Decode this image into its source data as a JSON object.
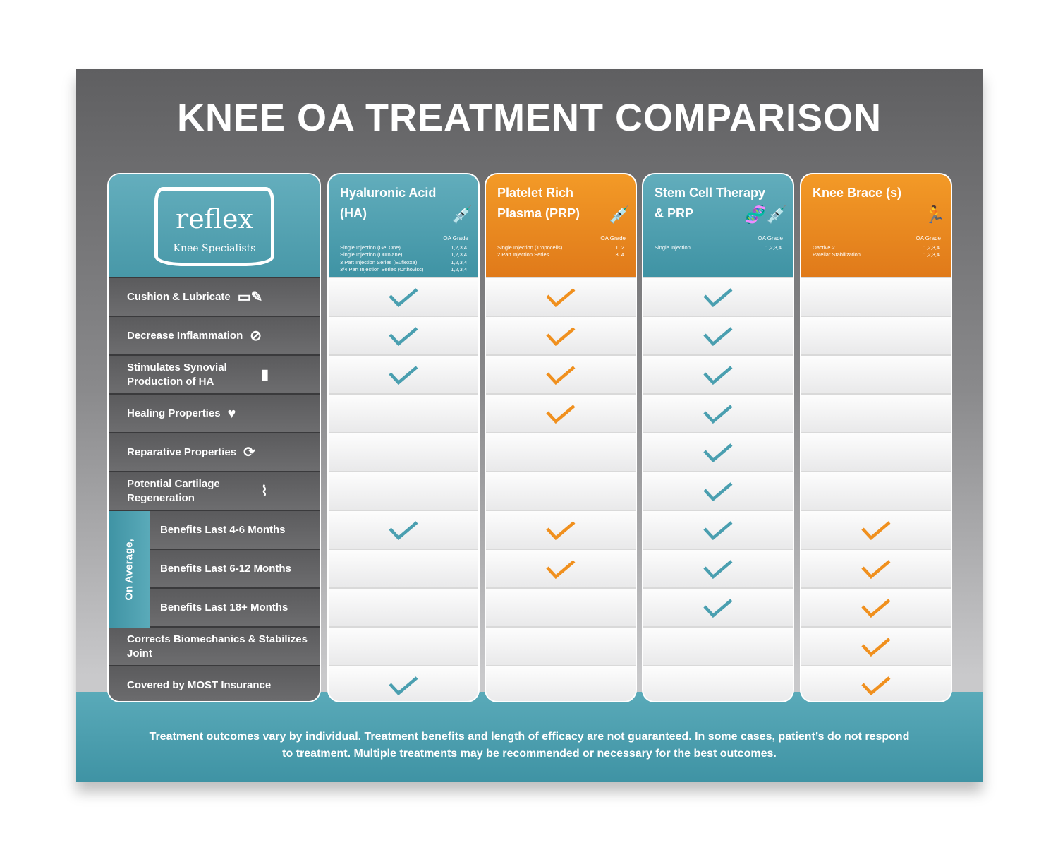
{
  "title": "KNEE OA TREATMENT COMPARISON",
  "logo": {
    "name": "reflex",
    "tagline": "Knee Specialists"
  },
  "colors": {
    "teal": "#4a9fb0",
    "orange": "#f0901e"
  },
  "on_average_label": "On Average,",
  "rows": [
    {
      "label": "Cushion & Lubricate",
      "icon": "pillow-droplet-icon",
      "sub": false
    },
    {
      "label": "Decrease Inflammation",
      "icon": "no-fire-icon",
      "sub": false
    },
    {
      "label": "Stimulates Synovial Production of HA",
      "icon": "joint-icon",
      "sub": false
    },
    {
      "label": "Healing Properties",
      "icon": "heart-plus-icon",
      "sub": false
    },
    {
      "label": "Reparative Properties",
      "icon": "refresh-gear-icon",
      "sub": false
    },
    {
      "label": "Potential Cartilage Regeneration",
      "icon": "knee-icon",
      "sub": false
    },
    {
      "label": "Benefits Last 4-6 Months",
      "icon": "",
      "sub": true
    },
    {
      "label": "Benefits Last 6-12 Months",
      "icon": "",
      "sub": true
    },
    {
      "label": "Benefits Last 18+ Months",
      "icon": "",
      "sub": true
    },
    {
      "label": "Corrects Biomechanics & Stabilizes Joint",
      "icon": "",
      "sub": false
    },
    {
      "label": "Covered by MOST Insurance",
      "icon": "",
      "sub": false
    }
  ],
  "treatments": [
    {
      "name": "Hyaluronic Acid (HA)",
      "color": "teal",
      "icon": "syringe-icon",
      "glyph": "💉",
      "grade_label": "OA Grade",
      "options": [
        [
          "Single Injection (Gel One)",
          "1,2,3,4"
        ],
        [
          "Single Injection (Durolane)",
          "1,2,3,4"
        ],
        [
          "3 Part Injection Series (Euflexxa)",
          "1,2,3,4"
        ],
        [
          "3/4 Part Injection Series (Orthovisc)",
          "1,2,3,4"
        ]
      ],
      "checks": [
        1,
        1,
        1,
        0,
        0,
        0,
        1,
        0,
        0,
        0,
        1
      ]
    },
    {
      "name": "Platelet Rich Plasma (PRP)",
      "color": "orange",
      "icon": "syringe-icon",
      "glyph": "💉",
      "grade_label": "OA Grade",
      "options": [
        [
          "Single Injection (Tropocells)",
          "1, 2"
        ],
        [
          "2 Part Injection Series",
          "3, 4"
        ]
      ],
      "checks": [
        1,
        1,
        1,
        1,
        0,
        0,
        1,
        1,
        0,
        0,
        0
      ]
    },
    {
      "name": "Stem Cell Therapy & PRP",
      "color": "teal",
      "icon": "dna-syringe-icon",
      "glyph": "🧬💉",
      "grade_label": "OA Grade",
      "options": [
        [
          "Single Injection",
          "1,2,3,4"
        ]
      ],
      "checks": [
        1,
        1,
        1,
        1,
        1,
        1,
        1,
        1,
        1,
        0,
        0
      ]
    },
    {
      "name": "Knee Brace (s)",
      "color": "orange",
      "icon": "running-person-icon",
      "glyph": "🏃",
      "grade_label": "OA Grade",
      "options": [
        [
          "Oactive 2",
          "1,2,3,4"
        ],
        [
          "Patellar Stabilization",
          "1,2,3,4"
        ]
      ],
      "checks": [
        0,
        0,
        0,
        0,
        0,
        0,
        1,
        1,
        1,
        1,
        1
      ]
    }
  ],
  "footer": "Treatment outcomes vary by individual. Treatment benefits and length of efficacy are not guaranteed. In some cases, patient’s do not respond to treatment. Multiple treatments may be recommended or necessary for the best outcomes."
}
